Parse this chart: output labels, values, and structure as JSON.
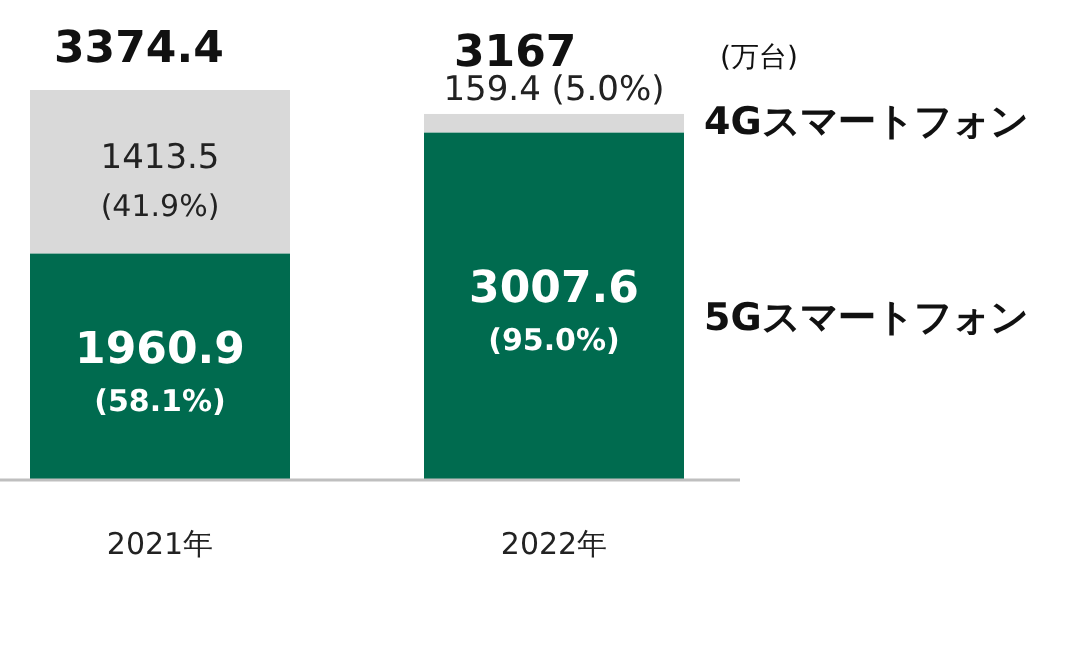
{
  "chart_data": {
    "type": "bar",
    "stacked": true,
    "categories": [
      "2021年",
      "2022年"
    ],
    "series": [
      {
        "name": "5Gスマートフォン",
        "color": "#006b4f",
        "values": [
          1960.9,
          3007.6
        ],
        "value_labels": [
          "1960.9 (58.1%)",
          "3007.6 (95.0%)"
        ]
      },
      {
        "name": "4Gスマートフォン",
        "color": "#d9d9d9",
        "values": [
          1413.5,
          159.4
        ],
        "value_labels": [
          "1413.5 (41.9%)",
          "159.4 (5.0%)"
        ]
      }
    ],
    "totals": [
      "3374.4",
      "3167"
    ],
    "annotations": [
      "(万台)"
    ],
    "legend": "right"
  }
}
